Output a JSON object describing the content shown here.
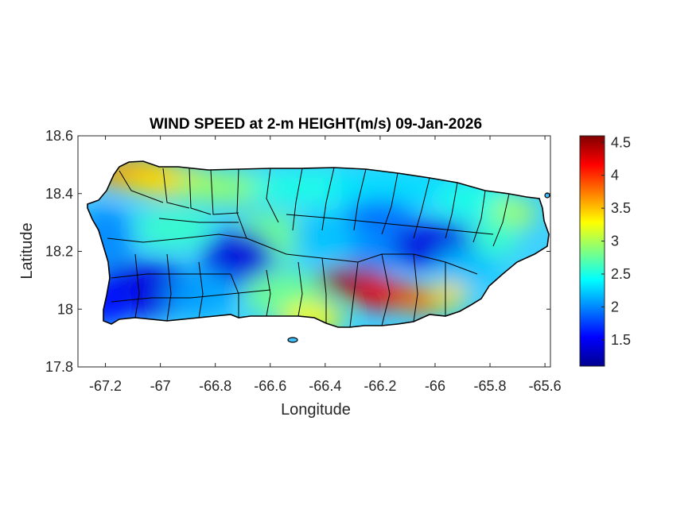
{
  "figure": {
    "title": "WIND SPEED at 2-m HEIGHT(m/s) 09-Jan-2026"
  },
  "map": {
    "xlabel": "Longitude",
    "ylabel": "Latitude",
    "xlim": [
      -67.3,
      -65.58
    ],
    "ylim": [
      17.8,
      18.6
    ],
    "xticks": [
      -67.2,
      -67,
      -66.8,
      -66.6,
      -66.4,
      -66.2,
      -66,
      -65.8,
      -65.6
    ],
    "xtick_labels": [
      "-67.2",
      "-67",
      "-66.8",
      "-66.6",
      "-66.4",
      "-66.2",
      "-66",
      "-65.8",
      "-65.6"
    ],
    "yticks": [
      17.8,
      18,
      18.2,
      18.4,
      18.6
    ],
    "ytick_labels": [
      "17.8",
      "18",
      "18.2",
      "18.4",
      "18.6"
    ],
    "region_outline_color": "#000000"
  },
  "colorbar": {
    "colormap": "jet",
    "range": [
      1.1,
      4.6
    ],
    "ticks": [
      1.5,
      2,
      2.5,
      3,
      3.5,
      4,
      4.5
    ],
    "tick_labels": [
      "1.5",
      "2",
      "2.5",
      "3",
      "3.5",
      "4",
      "4.5"
    ],
    "colors": [
      "#00008f",
      "#0000ff",
      "#0080ff",
      "#00ffff",
      "#80ff80",
      "#ffff00",
      "#ff8000",
      "#ff0000",
      "#800000"
    ]
  },
  "chart_data": {
    "type": "heatmap",
    "title": "WIND SPEED at 2-m HEIGHT(m/s) 09-Jan-2026",
    "xlabel": "Longitude",
    "ylabel": "Latitude",
    "xlim": [
      -67.3,
      -65.58
    ],
    "ylim": [
      17.8,
      18.6
    ],
    "units": "m/s",
    "value_range": [
      1.1,
      4.6
    ],
    "grid": false,
    "legend": "colorbar right",
    "notable_features": [
      {
        "lon": -67.12,
        "lat": 18.48,
        "value": 3.8
      },
      {
        "lon": -66.72,
        "lat": 18.18,
        "value": 1.4
      },
      {
        "lon": -67.05,
        "lat": 18.07,
        "value": 1.4
      },
      {
        "lon": -66.3,
        "lat": 18.1,
        "value": 4.5
      },
      {
        "lon": -66.1,
        "lat": 18.03,
        "value": 4.0
      },
      {
        "lon": -65.97,
        "lat": 18.22,
        "value": 1.4
      },
      {
        "lon": -65.72,
        "lat": 18.38,
        "value": 2.5
      }
    ]
  }
}
